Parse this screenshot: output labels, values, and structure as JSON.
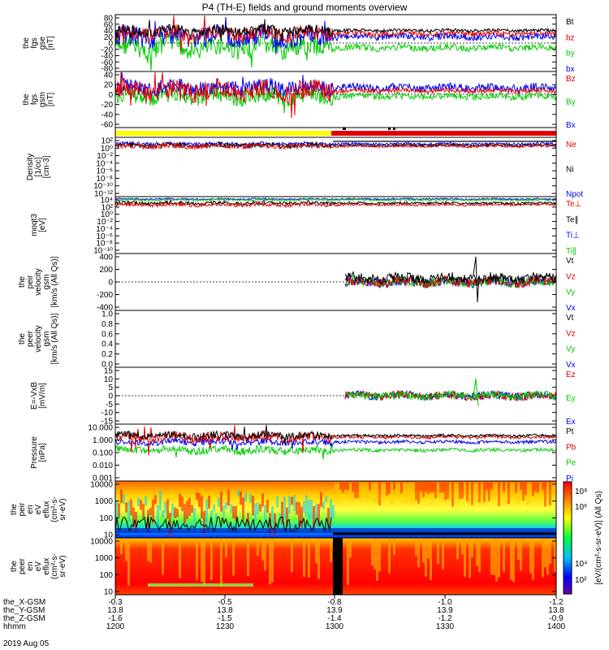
{
  "title": "P4 (TH-E) fields and ground moments overview",
  "colors": {
    "black": "#000000",
    "red": "#e00000",
    "green": "#00cc00",
    "blue": "#0000ee",
    "yellow": "#ffff00"
  },
  "chart_data": [
    {
      "type": "line",
      "panel": "fgs_gse",
      "ylabel": [
        "the",
        "fgs",
        "gse",
        "[nT]"
      ],
      "yticks": [
        "80",
        "60",
        "40",
        "20",
        "0",
        "-20",
        "-40",
        "-60",
        "-80"
      ],
      "ylim": [
        -80,
        80
      ],
      "series": [
        {
          "name": "Bt",
          "color": "black"
        },
        {
          "name": "bz",
          "color": "red"
        },
        {
          "name": "by",
          "color": "green"
        },
        {
          "name": "bx",
          "color": "blue"
        }
      ]
    },
    {
      "type": "line",
      "panel": "fgs_gsm",
      "ylabel": [
        "the",
        "fgs",
        "gsm",
        "[nT]"
      ],
      "yticks": [
        "40",
        "20",
        "0",
        "-20",
        "-40",
        "-60"
      ],
      "ylim": [
        -70,
        45
      ],
      "series": [
        {
          "name": "Bz",
          "color": "red"
        },
        {
          "name": "By",
          "color": "green"
        },
        {
          "name": "Bx",
          "color": "blue"
        }
      ]
    },
    {
      "type": "line",
      "panel": "density",
      "ylabel": [
        "Density",
        "[1/cc]",
        "[cm-3]"
      ],
      "yticks": [
        "10²",
        "10⁰",
        "10⁻²",
        "10⁻⁴",
        "10⁻⁶",
        "10⁻⁸",
        "10⁻¹⁰",
        "10⁻¹²"
      ],
      "series": [
        {
          "name": "Ne",
          "color": "red"
        },
        {
          "name": "Ni",
          "color": "black"
        },
        {
          "name": "Npot",
          "color": "blue"
        }
      ]
    },
    {
      "type": "line",
      "panel": "temperature",
      "ylabel": [
        "moqt3",
        "[eV]"
      ],
      "yticks": [
        "10⁴",
        "10²",
        "10⁰",
        "10⁻²",
        "10⁻⁴",
        "10⁻⁶",
        "10⁻⁸",
        "10⁻¹⁰"
      ],
      "series": [
        {
          "name": "Te⊥",
          "color": "red"
        },
        {
          "name": "Te∥",
          "color": "black"
        },
        {
          "name": "Ti⊥",
          "color": "blue"
        },
        {
          "name": "Ti∥",
          "color": "green"
        }
      ]
    },
    {
      "type": "line",
      "panel": "peir_velocity",
      "ylabel": [
        "the",
        "peir",
        "velocity",
        "gsm",
        "[km/s (All Qs)]"
      ],
      "yticks": [
        "400",
        "200",
        "0",
        "-200",
        "-400"
      ],
      "ylim": [
        -400,
        400
      ],
      "series": [
        {
          "name": "Vt",
          "color": "black"
        },
        {
          "name": "Vz",
          "color": "red"
        },
        {
          "name": "Vy",
          "color": "green"
        },
        {
          "name": "Vx",
          "color": "blue"
        }
      ]
    },
    {
      "type": "line",
      "panel": "peer_velocity",
      "ylabel": [
        "the",
        "peer",
        "velocity",
        "gsm",
        "[km/s (All Qs)]"
      ],
      "yticks": [
        "1.0",
        "0.8",
        "0.6",
        "0.4",
        "0.2",
        "0.0"
      ],
      "ylim": [
        0,
        1
      ],
      "series": [
        {
          "name": "Vt",
          "color": "black"
        },
        {
          "name": "Vz",
          "color": "red"
        },
        {
          "name": "Vy",
          "color": "green"
        },
        {
          "name": "Vx",
          "color": "blue"
        }
      ]
    },
    {
      "type": "line",
      "panel": "efield",
      "ylabel": [
        "E=-VxB",
        "[mV/m]"
      ],
      "yticks": [
        "15",
        "10",
        "5",
        "0",
        "-5",
        "-10",
        "-15"
      ],
      "ylim": [
        -15,
        15
      ],
      "series": [
        {
          "name": "Ez",
          "color": "red"
        },
        {
          "name": "Ey",
          "color": "green"
        },
        {
          "name": "Ex",
          "color": "blue"
        }
      ]
    },
    {
      "type": "line",
      "panel": "pressure",
      "ylabel": [
        "Pressure",
        "[nPa]"
      ],
      "yticks": [
        "10.000",
        "1.000",
        "0.100",
        "0.010",
        "0.001"
      ],
      "series": [
        {
          "name": "Pt",
          "color": "black"
        },
        {
          "name": "Pb",
          "color": "red"
        },
        {
          "name": "Pe",
          "color": "green"
        },
        {
          "name": "Pi",
          "color": "blue"
        }
      ]
    },
    {
      "type": "heatmap",
      "panel": "peir_spectrogram",
      "ylabel": [
        "the",
        "peir",
        "en",
        "eV",
        "eflux",
        "(cm²-s-",
        "sr-eV)"
      ],
      "yticks": [
        "10000",
        "1000",
        "100",
        "10"
      ]
    },
    {
      "type": "heatmap",
      "panel": "peer_spectrogram",
      "ylabel": [
        "the",
        "peer",
        "en",
        "eV",
        "eflux",
        "(cm²-s-",
        "sr-eV)"
      ],
      "yticks": [
        "10000",
        "1000",
        "100",
        "10"
      ]
    }
  ],
  "colorbar": {
    "ticks": [
      "10⁸",
      "10⁶",
      "10⁴",
      "10²"
    ],
    "label": "[eV/(cm²-s-sr-eV)] (All Qs)"
  },
  "xaxis": {
    "rows": [
      {
        "label": "the_X-GSM",
        "values": [
          "-0.3",
          "-0.5",
          "-0.8",
          "-1.0",
          "-1.2"
        ]
      },
      {
        "label": "the_Y-GSM",
        "values": [
          "13.8",
          "13.8",
          "13.9",
          "13.9",
          "13.8"
        ]
      },
      {
        "label": "the_Z-GSM",
        "values": [
          "-1.6",
          "-1.5",
          "-1.4",
          "-1.2",
          "-0.9"
        ]
      },
      {
        "label": "hhmm",
        "values": [
          "1200",
          "1230",
          "1300",
          "1330",
          "1400"
        ]
      }
    ],
    "date": "2019 Aug 05"
  },
  "mode_bar": {
    "segments": [
      {
        "color": "yellow",
        "fraction": 0.49
      },
      {
        "color": "red",
        "fraction": 0.51
      }
    ]
  }
}
